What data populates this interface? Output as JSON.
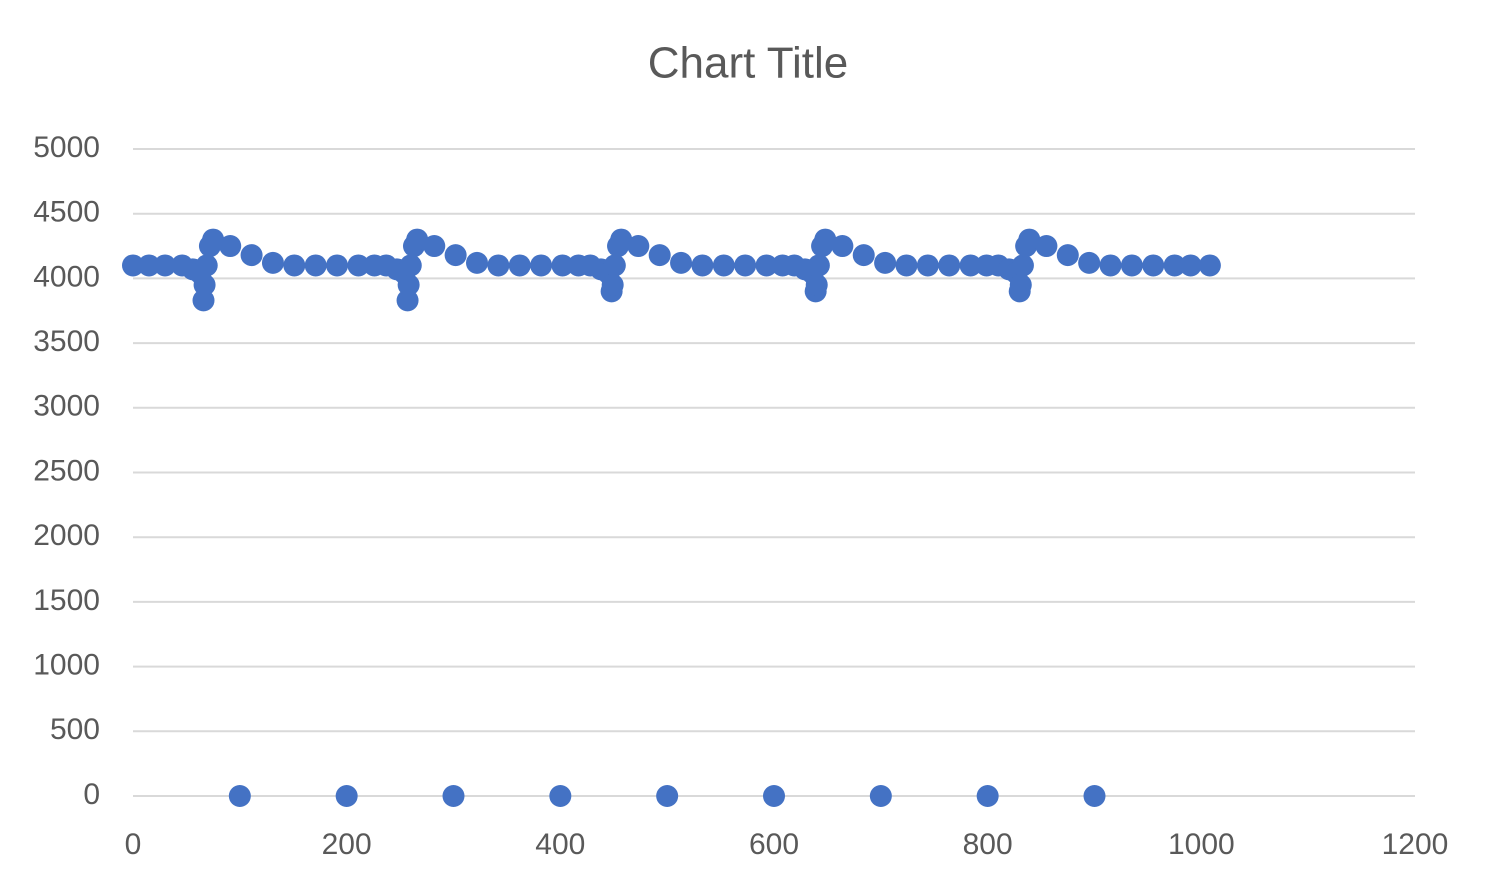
{
  "chart_data": {
    "type": "scatter",
    "title": "Chart Title",
    "series": [
      {
        "color": "#4472c4",
        "x": [
          0,
          15,
          30,
          46,
          56,
          63,
          66,
          67,
          69,
          72,
          75,
          91,
          111,
          131,
          151,
          171,
          191,
          211,
          226,
          237,
          247,
          254,
          257,
          258,
          260,
          263,
          266,
          282,
          302,
          322,
          342,
          362,
          382,
          402,
          417,
          428,
          438,
          445,
          448,
          449,
          451,
          454,
          457,
          473,
          493,
          513,
          533,
          553,
          573,
          593,
          608,
          619,
          629,
          636,
          639,
          640,
          642,
          645,
          648,
          664,
          684,
          704,
          724,
          744,
          764,
          784,
          799,
          810,
          820,
          827,
          830,
          831,
          833,
          836,
          839,
          855,
          875,
          895,
          915,
          935,
          955,
          975,
          990,
          1008
        ],
        "values": [
          4100,
          4100,
          4100,
          4100,
          4070,
          4040,
          3830,
          3950,
          4100,
          4250,
          4300,
          4250,
          4180,
          4120,
          4100,
          4100,
          4100,
          4100,
          4100,
          4100,
          4070,
          4040,
          3830,
          3950,
          4100,
          4250,
          4300,
          4250,
          4180,
          4120,
          4100,
          4100,
          4100,
          4100,
          4100,
          4100,
          4070,
          4040,
          3900,
          3950,
          4100,
          4250,
          4300,
          4250,
          4180,
          4120,
          4100,
          4100,
          4100,
          4100,
          4100,
          4100,
          4070,
          4040,
          3900,
          3950,
          4100,
          4250,
          4300,
          4250,
          4180,
          4120,
          4100,
          4100,
          4100,
          4100,
          4100,
          4100,
          4070,
          4040,
          3900,
          3950,
          4100,
          4250,
          4300,
          4250,
          4180,
          4120,
          4100,
          4100,
          4100,
          4100,
          4100,
          4100
        ]
      },
      {
        "color": "#4472c4",
        "x": [
          100,
          200,
          300,
          400,
          500,
          600,
          700,
          800,
          900
        ],
        "values": [
          0,
          0,
          0,
          0,
          0,
          0,
          0,
          0,
          0
        ]
      }
    ],
    "xlim": [
      0,
      1200
    ],
    "xticks": [
      0,
      200,
      400,
      600,
      800,
      1000,
      1200
    ],
    "ylim": [
      0,
      5000
    ],
    "yticks": [
      0,
      500,
      1000,
      1500,
      2000,
      2500,
      3000,
      3500,
      4000,
      4500,
      5000
    ],
    "grid": true
  }
}
